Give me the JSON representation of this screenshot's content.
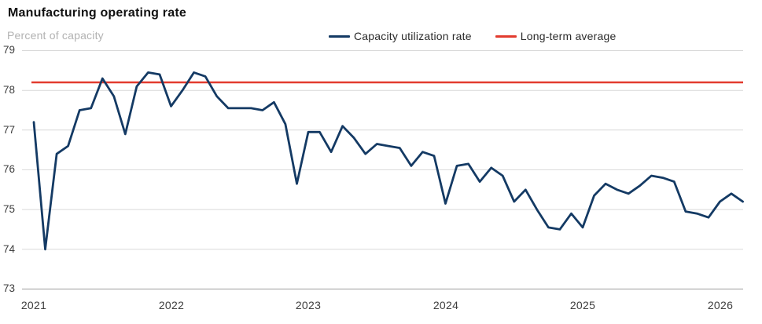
{
  "header": {
    "title": "Manufacturing operating rate",
    "subtitle": "Percent of capacity"
  },
  "legend": [
    {
      "label": "Capacity utilization rate",
      "color": "#143a64"
    },
    {
      "label": "Long-term average",
      "color": "#e23b2e"
    }
  ],
  "chart_data": {
    "type": "line",
    "title": "Manufacturing operating rate",
    "ylabel": "Percent of capacity",
    "ylim": [
      73,
      79
    ],
    "grid": true,
    "legend_position": "top",
    "y_ticks": [
      "79",
      "78",
      "77",
      "76",
      "75",
      "74",
      "73"
    ],
    "y_tick_values": [
      79,
      78,
      77,
      76,
      75,
      74,
      73
    ],
    "x_ticks": [
      "2021",
      "2022",
      "2023",
      "2024",
      "2025",
      "2026"
    ],
    "x_start_month": "2021-01",
    "x_end_month": "2026-03",
    "frequency": "monthly",
    "series": [
      {
        "name": "Capacity utilization rate",
        "color": "#143a64",
        "values": [
          77.2,
          74.0,
          76.4,
          76.6,
          77.5,
          77.55,
          78.3,
          77.85,
          76.9,
          78.1,
          78.45,
          78.4,
          77.6,
          78.0,
          78.45,
          78.35,
          77.85,
          77.55,
          77.55,
          77.55,
          77.5,
          77.7,
          77.15,
          75.65,
          76.95,
          76.95,
          76.45,
          77.1,
          76.8,
          76.4,
          76.65,
          76.6,
          76.55,
          76.1,
          76.45,
          76.35,
          75.15,
          76.1,
          76.15,
          75.7,
          76.05,
          75.85,
          75.2,
          75.5,
          75.0,
          74.55,
          74.5,
          74.9,
          74.55,
          75.35,
          75.65,
          75.5,
          75.4,
          75.6,
          75.85,
          75.8,
          75.7,
          74.95,
          74.9,
          74.8,
          75.2,
          75.4,
          75.2
        ]
      },
      {
        "name": "Long-term average",
        "color": "#e23b2e",
        "constant_value": 78.2
      }
    ]
  }
}
